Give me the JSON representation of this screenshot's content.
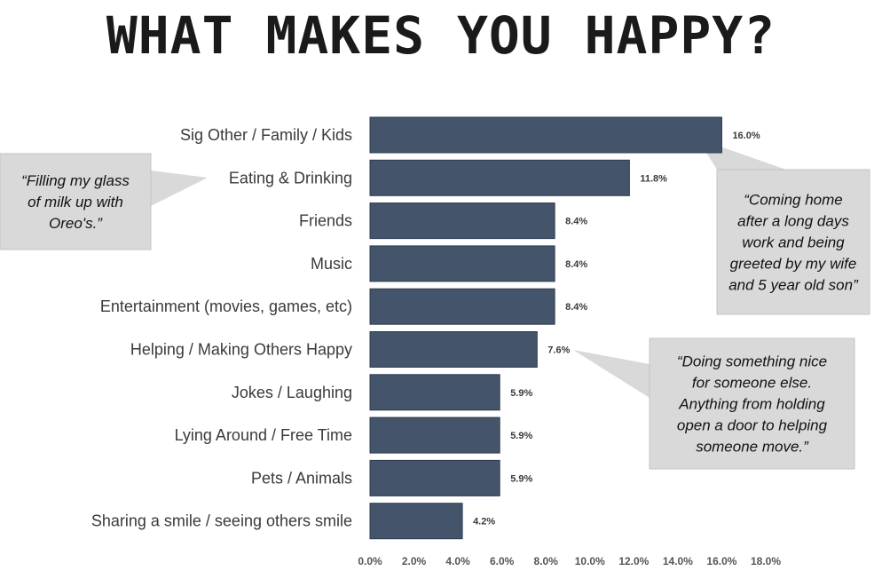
{
  "title": "WHAT MAKES YOU HAPPY?",
  "colors": {
    "bar": "#44546a",
    "bar_edge": "#2e3a4d",
    "callout_bg": "#d9d9d9",
    "callout_edge": "#c4c4c4"
  },
  "chart_data": {
    "type": "bar",
    "orientation": "horizontal",
    "title": "WHAT MAKES YOU HAPPY?",
    "categories": [
      "Sig Other  / Family / Kids",
      "Eating & Drinking",
      "Friends",
      "Music",
      "Entertainment (movies, games, etc)",
      "Helping / Making Others Happy",
      "Jokes / Laughing",
      "Lying Around  / Free Time",
      "Pets / Animals",
      "Sharing a smile / seeing others smile"
    ],
    "values": [
      16.0,
      11.8,
      8.4,
      8.4,
      8.4,
      7.6,
      5.9,
      5.9,
      5.9,
      4.2
    ],
    "value_labels": [
      "16.0%",
      "11.8%",
      "8.4%",
      "8.4%",
      "8.4%",
      "7.6%",
      "5.9%",
      "5.9%",
      "5.9%",
      "4.2%"
    ],
    "xlim": [
      0,
      18
    ],
    "xticks": [
      "0.0%",
      "2.0%",
      "4.0%",
      "6.0%",
      "8.0%",
      "10.0%",
      "12.0%",
      "14.0%",
      "16.0%",
      "18.0%"
    ],
    "grid": false,
    "xlabel": "",
    "ylabel": ""
  },
  "callouts": [
    {
      "name": "callout-eating",
      "lines": [
        "“Filling my glass",
        "of milk up with",
        "Oreo's.”"
      ],
      "points_to": "Eating & Drinking"
    },
    {
      "name": "callout-family",
      "lines": [
        "“Coming home",
        "after a long days",
        "work and being",
        "greeted by my wife",
        "and 5 year old son”"
      ],
      "points_to": "Sig Other  / Family / Kids"
    },
    {
      "name": "callout-helping",
      "lines": [
        "“Doing something nice",
        "for someone else.",
        "Anything from holding",
        "open a door to helping",
        "someone move.”"
      ],
      "points_to": "Helping / Making Others Happy"
    }
  ]
}
